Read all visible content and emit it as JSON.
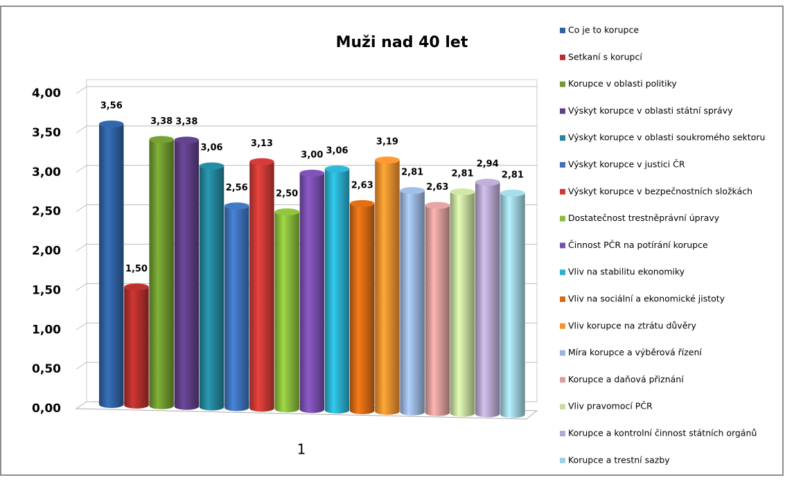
{
  "chart_data": {
    "type": "bar",
    "title": "Muži nad 40 let",
    "categories": [
      "1"
    ],
    "ylim": [
      0,
      4
    ],
    "yticks": [
      {
        "value": 0,
        "label": "0,00"
      },
      {
        "value": 0.5,
        "label": "0,50"
      },
      {
        "value": 1,
        "label": "1,00"
      },
      {
        "value": 1.5,
        "label": "1,50"
      },
      {
        "value": 2,
        "label": "2,00"
      },
      {
        "value": 2.5,
        "label": "2,50"
      },
      {
        "value": 3,
        "label": "3,00"
      },
      {
        "value": 3.5,
        "label": "3,50"
      },
      {
        "value": 4,
        "label": "4,00"
      }
    ],
    "grid": true,
    "legend": "right",
    "series": [
      {
        "name": "Co je to korupce",
        "color": "#2f62a3",
        "values": [
          3.56
        ],
        "value_labels": [
          "3,56"
        ]
      },
      {
        "name": "Setkaní s korupcí",
        "color": "#b5302c",
        "values": [
          1.5
        ],
        "value_labels": [
          "1,50"
        ]
      },
      {
        "name": "Korupce v oblasti politiky",
        "color": "#6f9a30",
        "values": [
          3.38
        ],
        "value_labels": [
          "3,38"
        ]
      },
      {
        "name": "Výskyt  korupce v oblasti státní správy",
        "color": "#5f3f87",
        "values": [
          3.38
        ],
        "value_labels": [
          "3,38"
        ]
      },
      {
        "name": "Výskyt korupce v oblasti soukromého sektoru",
        "color": "#24869c",
        "values": [
          3.06
        ],
        "value_labels": [
          "3,06"
        ]
      },
      {
        "name": "Výskyt  korupce v justici ČR",
        "color": "#3f73bd",
        "values": [
          2.56
        ],
        "value_labels": [
          "2,56"
        ]
      },
      {
        "name": "Výskyt  korupce v bezpečnostních složkách",
        "color": "#cc3a36",
        "values": [
          3.13
        ],
        "value_labels": [
          "3,13"
        ]
      },
      {
        "name": "Dostatečnost trestněprávní úpravy",
        "color": "#8bbd3c",
        "values": [
          2.5
        ],
        "value_labels": [
          "2,50"
        ]
      },
      {
        "name": "Činnost PČR na potírání korupce",
        "color": "#7a4fb0",
        "values": [
          3.0
        ],
        "value_labels": [
          "3,00"
        ]
      },
      {
        "name": "Vliv na stabilitu ekonomiky",
        "color": "#2bb0cf",
        "values": [
          3.06
        ],
        "value_labels": [
          "3,06"
        ]
      },
      {
        "name": "Vliv na sociální a ekonomické jistoty",
        "color": "#d96b14",
        "values": [
          2.63
        ],
        "value_labels": [
          "2,63"
        ]
      },
      {
        "name": "Vliv korupce na ztrátu důvěry",
        "color": "#f7922f",
        "values": [
          3.19
        ],
        "value_labels": [
          "3,19"
        ]
      },
      {
        "name": "Míra korupce a výběrová řízení",
        "color": "#9ab6dc",
        "values": [
          2.81
        ],
        "value_labels": [
          "2,81"
        ]
      },
      {
        "name": "Korupce a daňová přiznání",
        "color": "#dc9e9c",
        "values": [
          2.63
        ],
        "value_labels": [
          "2,63"
        ]
      },
      {
        "name": "Vliv pravomocí PČR",
        "color": "#c7dd9f",
        "values": [
          2.81
        ],
        "value_labels": [
          "2,81"
        ]
      },
      {
        "name": "Korupce a kontrolní činnost státních orgánů",
        "color": "#b8a8cf",
        "values": [
          2.94
        ],
        "value_labels": [
          "2,94"
        ]
      },
      {
        "name": "Korupce a trestní sazby",
        "color": "#9fd3e2",
        "values": [
          2.81
        ],
        "value_labels": [
          "2,81"
        ]
      }
    ]
  }
}
